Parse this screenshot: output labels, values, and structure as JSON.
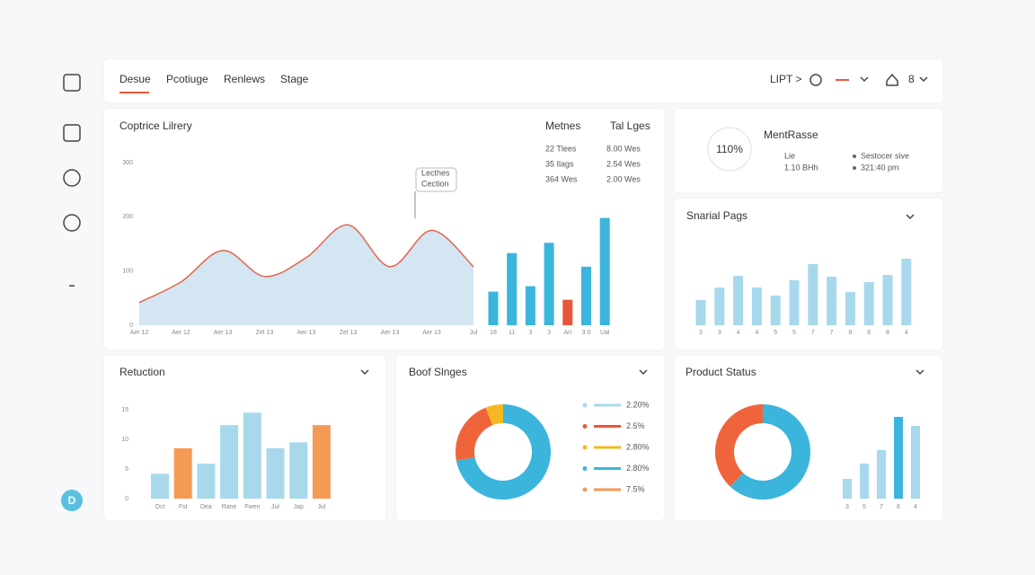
{
  "nav": {
    "tabs": [
      "Desue",
      "Pcotiuge",
      "Renlews",
      "Stage"
    ],
    "right_label": "LIPT >",
    "user_label": "8"
  },
  "sidebar": {
    "avatar": "D"
  },
  "main": {
    "title": "Coptrice Lilrery",
    "annotation": [
      "Lecthes",
      "Cection"
    ],
    "area": {
      "type": "area",
      "color": "#d3e6f2",
      "line_color": "#e0674f",
      "categories": [
        "Aer 12",
        "Aer 12",
        "Aer 13",
        "Zel 13",
        "Aer 13",
        "Zel 13",
        "Aer 13",
        "Aer 13",
        "Jul"
      ],
      "values": [
        42,
        80,
        138,
        90,
        125,
        185,
        108,
        175,
        108
      ],
      "ylim": [
        0,
        300
      ],
      "yticks": [
        0,
        100,
        200,
        300
      ]
    },
    "bars": {
      "type": "bar",
      "categories": [
        "18",
        "11",
        "3",
        "3",
        "Ari",
        "3.0",
        "Ual"
      ],
      "values": [
        62,
        133,
        72,
        152,
        47,
        108,
        198
      ],
      "colors": [
        "#3bb5dc",
        "#3bb5dc",
        "#3bb5dc",
        "#3bb5dc",
        "#e8563a",
        "#3bb5dc",
        "#3bb5dc"
      ]
    },
    "table": {
      "headers": [
        "Metnes",
        "Tal Lges"
      ],
      "rows": [
        [
          "22 Tlees",
          "8.00 Wes"
        ],
        [
          "35 Ilags",
          "2.54 Wes"
        ],
        [
          "364 Wes",
          "2.00 Wes"
        ]
      ]
    }
  },
  "metric": {
    "percent": "110%",
    "title": "MentRasse",
    "left": [
      "Lie",
      "1.10 BHh"
    ],
    "right": [
      "Sestocer sive",
      "321:40 pm"
    ]
  },
  "spinal": {
    "type": "bar",
    "title": "Snarial Pags",
    "color": "#a8d8ec",
    "categories": [
      "3",
      "3",
      "4",
      "4",
      "5",
      "5",
      "7",
      "7",
      "6",
      "6",
      "8",
      "4"
    ],
    "values": [
      28,
      42,
      55,
      42,
      33,
      50,
      68,
      54,
      37,
      48,
      56,
      74
    ]
  },
  "retuction": {
    "type": "bar",
    "title": "Retuction",
    "categories": [
      "Oct",
      "Fst",
      "Dea",
      "Rane",
      "Fwen",
      "Jul",
      "Jap",
      "Jul"
    ],
    "values": [
      4.2,
      8.5,
      5.9,
      12.4,
      14.5,
      8.5,
      9.5,
      12.4
    ],
    "colors": [
      "#a8d8ec",
      "#f59a55",
      "#a8d8ec",
      "#a8d8ec",
      "#a8d8ec",
      "#a8d8ec",
      "#a8d8ec",
      "#f59a55"
    ],
    "ylim": [
      0,
      15
    ],
    "yticks": [
      0,
      5,
      10,
      15
    ]
  },
  "booth": {
    "type": "pie",
    "title": "Boof Slnges",
    "values": [
      72,
      22,
      6
    ],
    "colors": [
      "#3bb5dc",
      "#f0643c",
      "#f5b820"
    ],
    "legend": [
      {
        "label": "2.20%",
        "color": "#a8d8ec"
      },
      {
        "label": "2.5%",
        "color": "#e8563a"
      },
      {
        "label": "2.80%",
        "color": "#f5b820"
      },
      {
        "label": "2.80%",
        "color": "#3bb5dc"
      },
      {
        "label": "7.5%",
        "color": "#f59a55"
      }
    ]
  },
  "status": {
    "type": "pie",
    "title": "Product Status",
    "values": [
      62,
      38
    ],
    "colors": [
      "#3bb5dc",
      "#f0643c"
    ],
    "bars": {
      "type": "bar",
      "categories": [
        "3",
        "5",
        "7",
        "8",
        "4"
      ],
      "values": [
        22,
        39,
        54,
        91,
        81
      ],
      "colors": [
        "#a8d8ec",
        "#a8d8ec",
        "#a8d8ec",
        "#3bb5dc",
        "#a8d8ec"
      ]
    }
  }
}
